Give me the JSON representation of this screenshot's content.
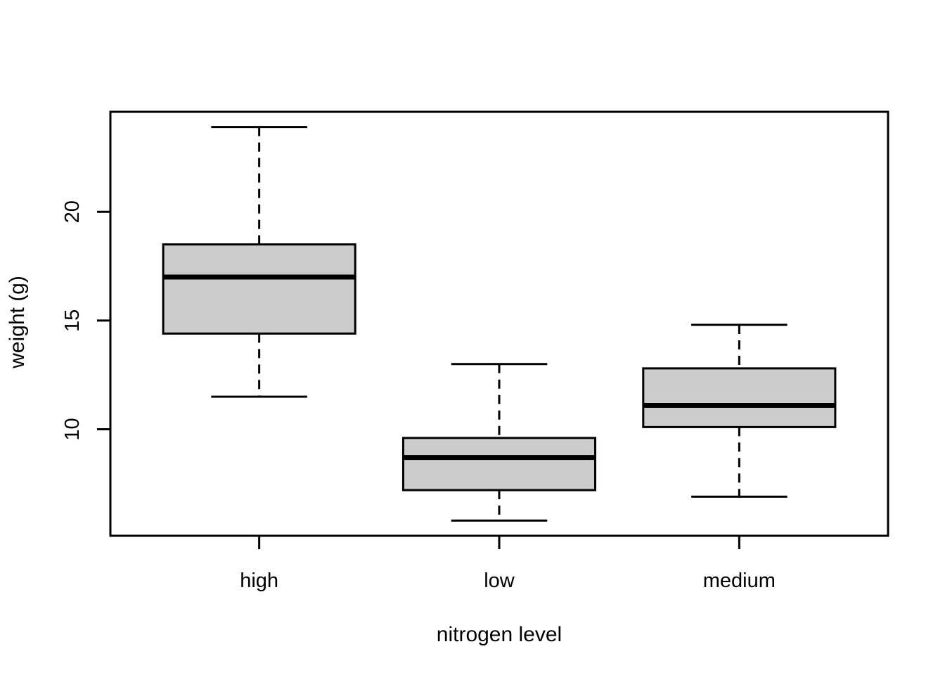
{
  "figure": {
    "background": "#FFFFFF"
  },
  "chart_data": {
    "type": "boxplot",
    "title": "",
    "xlabel": "nitrogen level",
    "ylabel": "weight (g)",
    "categories": [
      "high",
      "low",
      "medium"
    ],
    "yticks": [
      20,
      15,
      10
    ],
    "ylim": [
      5.1,
      24.6
    ],
    "grid": false,
    "legend": "none",
    "colors": {
      "box_fill": "#CCCCCC",
      "stroke": "#000000",
      "background": "#FFFFFF"
    },
    "groups": [
      {
        "label": "high",
        "min": 11.5,
        "q1": 14.4,
        "median": 17.0,
        "q3": 18.5,
        "max": 23.9
      },
      {
        "label": "low",
        "min": 5.8,
        "q1": 7.2,
        "median": 8.7,
        "q3": 9.6,
        "max": 13.0
      },
      {
        "label": "medium",
        "min": 6.9,
        "q1": 10.1,
        "median": 11.1,
        "q3": 12.8,
        "max": 14.8
      }
    ]
  }
}
